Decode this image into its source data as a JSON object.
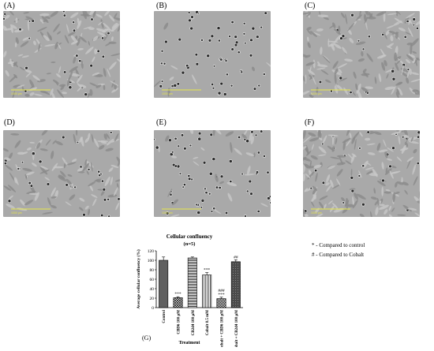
{
  "panels": [
    {
      "label": "(A)",
      "scale_text": "1000 µm"
    },
    {
      "label": "(B)",
      "scale_text": "1000 µm"
    },
    {
      "label": "(C)",
      "scale_text": "1000 µm"
    },
    {
      "label": "(D)",
      "scale_text": "1000 µm"
    },
    {
      "label": "(E)",
      "scale_text": "1000 µm"
    },
    {
      "label": "(F)",
      "scale_text": "1000 µm"
    }
  ],
  "chart_label": "(G)",
  "legend": {
    "control": "* - Compared to control",
    "cobalt": "# - Compared to Cobalt"
  },
  "chart_data": {
    "type": "bar",
    "title": "Cellular confluency",
    "subtitle": "(n=5)",
    "xlabel": "Treatment",
    "ylabel": "Average cellular confluency (%)",
    "ylim": [
      0,
      120
    ],
    "yticks": [
      0,
      20,
      40,
      60,
      80,
      100,
      120
    ],
    "categories": [
      "Control",
      "CBD6 100 µM",
      "CB2d4 100 µM",
      "Cobalt 0.5 mM",
      "Cobalt + CBD6 100 µM",
      "Cobalt + CB2d4 100 µM"
    ],
    "values": [
      100,
      21,
      105,
      69,
      19,
      97
    ],
    "errors": [
      7,
      2,
      2,
      5,
      3,
      4
    ],
    "annotations": [
      "",
      "***",
      "",
      "***",
      "###\n***",
      "##"
    ],
    "colors": [
      "#555555",
      "#888888",
      "#aaaaaa",
      "#dddddd",
      "#777777",
      "#444444"
    ]
  }
}
